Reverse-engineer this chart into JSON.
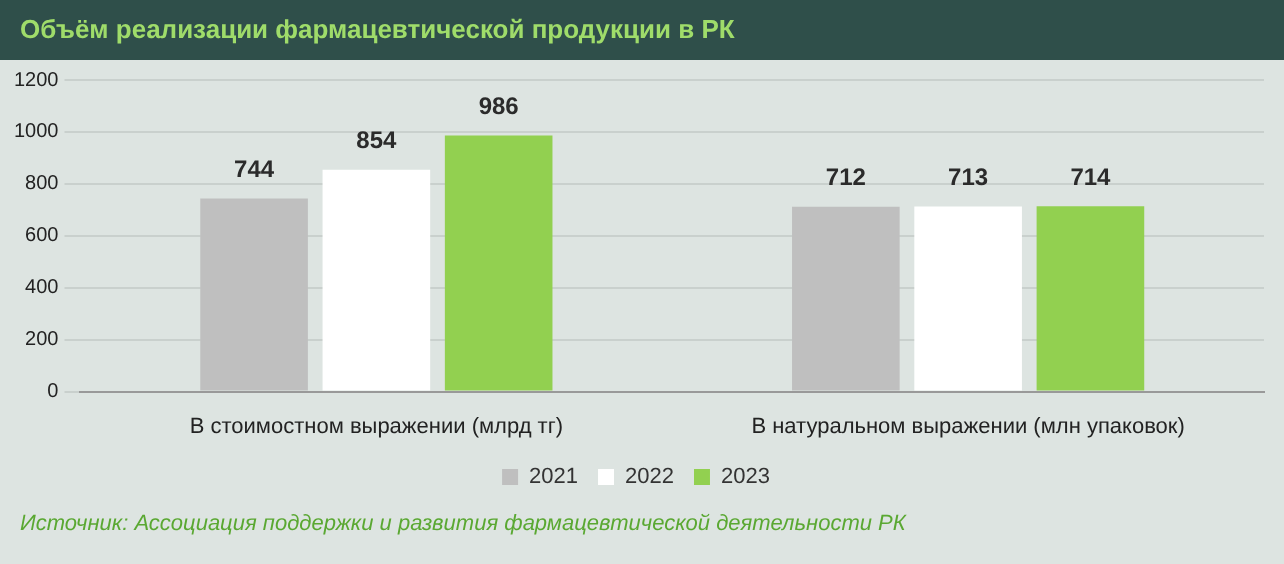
{
  "chart_data": {
    "type": "bar",
    "title": "Объём реализации фармацевтической продукции в РК",
    "categories": [
      "В стоимостном выражении (млрд тг)",
      "В натуральном выражении (млн упаковок)"
    ],
    "series": [
      {
        "name": "2021",
        "color": "#bfbfbf",
        "values": [
          744,
          712
        ]
      },
      {
        "name": "2022",
        "color": "#ffffff",
        "values": [
          854,
          713
        ]
      },
      {
        "name": "2023",
        "color": "#92d050",
        "values": [
          986,
          714
        ]
      }
    ],
    "ylim": [
      0,
      1200
    ],
    "yticks": [
      0,
      200,
      400,
      600,
      800,
      1000,
      1200
    ],
    "grid": "y",
    "legend": "bottom",
    "data_labels": true,
    "annotations": [
      "Источник: Ассоциация поддержки и развития фармацевтической деятельности РК"
    ]
  }
}
